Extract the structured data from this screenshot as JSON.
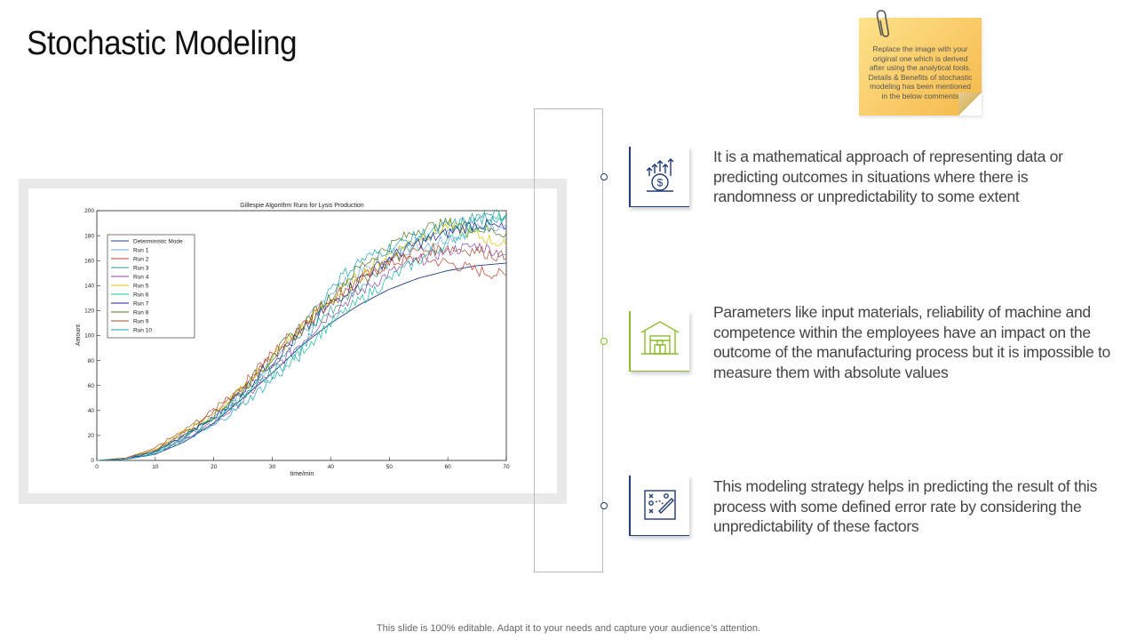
{
  "slide": {
    "title": "Stochastic Modeling",
    "sticky_note": "Replace the image with your original one which is derived after using the analytical tools. Details & Benefits of stochastic modeling has been mentioned in the below comments",
    "footer": "This slide is 100% editable. Adapt it to your needs and capture your audience’s attention.",
    "colors": {
      "accent_blue": "#1f3c73",
      "accent_green": "#8dbb2c"
    }
  },
  "points": [
    {
      "icon": "money-growth-icon",
      "text": "It is a mathematical approach of representing data or predicting outcomes in situations where there is randomness or unpredictability to some extent"
    },
    {
      "icon": "warehouse-icon",
      "text": "Parameters like input materials, reliability of machine and competence within the employees have an impact on the outcome of the manufacturing process but it is impossible to measure them with absolute values"
    },
    {
      "icon": "strategy-board-icon",
      "text": "This modeling strategy helps in predicting the result of this process with some defined error rate by considering the unpredictability of these factors"
    }
  ],
  "chart_data": {
    "type": "line",
    "title": "Gillespie Algorithm Runs for Lysis Production",
    "xlabel": "time/min",
    "ylabel": "Amount",
    "xlim": [
      0,
      70
    ],
    "ylim": [
      0,
      200
    ],
    "xticks": [
      0,
      10,
      20,
      30,
      40,
      50,
      60,
      70
    ],
    "yticks": [
      0,
      20,
      40,
      60,
      80,
      100,
      120,
      140,
      160,
      180,
      200
    ],
    "legend_position": "top-left",
    "x": [
      0,
      5,
      10,
      15,
      20,
      25,
      30,
      35,
      40,
      45,
      50,
      55,
      60,
      65,
      70
    ],
    "series": [
      {
        "name": "Deterministic Mode",
        "color": "#1f3c8a",
        "values": [
          0,
          1,
          5,
          15,
          30,
          50,
          70,
          92,
          110,
          125,
          137,
          146,
          152,
          156,
          158
        ]
      },
      {
        "name": "Run 1",
        "color": "#6fa8dc",
        "values": [
          0,
          2,
          7,
          20,
          35,
          55,
          80,
          105,
          135,
          150,
          165,
          172,
          178,
          185,
          190
        ]
      },
      {
        "name": "Run 2",
        "color": "#c0392b",
        "values": [
          0,
          2,
          8,
          22,
          38,
          60,
          85,
          110,
          130,
          145,
          158,
          162,
          158,
          152,
          148
        ]
      },
      {
        "name": "Run 3",
        "color": "#2e9e8f",
        "values": [
          0,
          1,
          6,
          18,
          32,
          52,
          78,
          100,
          120,
          140,
          160,
          175,
          185,
          195,
          198
        ]
      },
      {
        "name": "Run 4",
        "color": "#8e44ad",
        "values": [
          0,
          1,
          5,
          17,
          30,
          48,
          72,
          95,
          118,
          135,
          150,
          160,
          168,
          172,
          165
        ]
      },
      {
        "name": "Run 5",
        "color": "#d4c300",
        "values": [
          0,
          2,
          9,
          24,
          36,
          58,
          82,
          106,
          128,
          148,
          165,
          178,
          188,
          180,
          172
        ]
      },
      {
        "name": "Run 6",
        "color": "#1abc9c",
        "values": [
          0,
          1,
          6,
          19,
          33,
          50,
          70,
          88,
          110,
          128,
          145,
          160,
          175,
          188,
          195
        ]
      },
      {
        "name": "Run 7",
        "color": "#1f1f9e",
        "values": [
          0,
          1,
          7,
          20,
          34,
          56,
          80,
          102,
          125,
          145,
          162,
          174,
          182,
          190,
          185
        ]
      },
      {
        "name": "Run 8",
        "color": "#4d7a1f",
        "values": [
          0,
          2,
          8,
          21,
          36,
          57,
          83,
          108,
          132,
          155,
          172,
          185,
          190,
          186,
          182
        ]
      },
      {
        "name": "Run 9",
        "color": "#a0522d",
        "values": [
          0,
          2,
          10,
          25,
          40,
          60,
          84,
          104,
          126,
          144,
          160,
          168,
          170,
          168,
          162
        ]
      },
      {
        "name": "Run 10",
        "color": "#17a2b8",
        "values": [
          0,
          1,
          5,
          16,
          28,
          45,
          65,
          85,
          140,
          160,
          170,
          180,
          188,
          192,
          196
        ]
      }
    ]
  }
}
